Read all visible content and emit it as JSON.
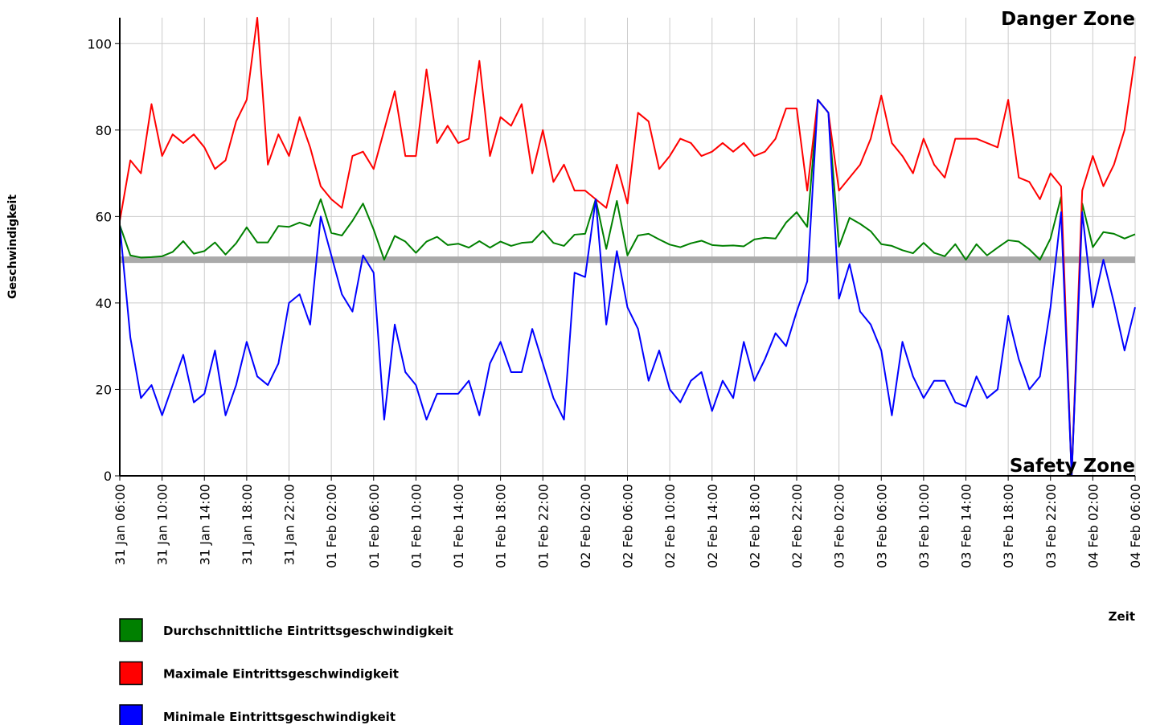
{
  "chart_data": {
    "type": "line",
    "y_label": "Geschwindigkeit",
    "x_label": "Zeit",
    "annotations": [
      {
        "text": "Danger Zone",
        "color": "#8b0000"
      },
      {
        "text": "Safety Zone",
        "color": "#006400"
      }
    ],
    "reference_line": {
      "value": 50,
      "color": "#aaaaaa"
    },
    "categories": [
      "31 Jan 06:00",
      null,
      null,
      null,
      "31 Jan 10:00",
      null,
      null,
      null,
      "31 Jan 14:00",
      null,
      null,
      null,
      "31 Jan 18:00",
      null,
      null,
      null,
      "31 Jan 22:00",
      null,
      null,
      null,
      "01 Feb 02:00",
      null,
      null,
      null,
      "01 Feb 06:00",
      null,
      null,
      null,
      "01 Feb 10:00",
      null,
      null,
      null,
      "01 Feb 14:00",
      null,
      null,
      null,
      "01 Feb 18:00",
      null,
      null,
      null,
      "01 Feb 22:00",
      null,
      null,
      null,
      "02 Feb 02:00",
      null,
      null,
      null,
      "02 Feb 06:00",
      null,
      null,
      null,
      "02 Feb 10:00",
      null,
      null,
      null,
      "02 Feb 14:00",
      null,
      null,
      null,
      "02 Feb 18:00",
      null,
      null,
      null,
      "02 Feb 22:00",
      null,
      null,
      null,
      "03 Feb 02:00",
      null,
      null,
      null,
      "03 Feb 06:00",
      null,
      null,
      null,
      "03 Feb 10:00",
      null,
      null,
      null,
      "03 Feb 14:00",
      null,
      null,
      null,
      "03 Feb 18:00",
      null,
      null,
      null,
      "03 Feb 22:00",
      null,
      null,
      null,
      "04 Feb 02:00",
      null,
      null,
      null,
      "04 Feb 06:00"
    ],
    "series": [
      {
        "name": "Durchschnittliche Eintrittsgeschwindigkeit",
        "color": "#008000",
        "values": [
          58,
          51,
          50.5,
          50.6,
          50.8,
          51.8,
          54.3,
          51.4,
          52,
          54,
          51.2,
          53.8,
          57.5,
          54,
          54,
          57.8,
          57.6,
          58.6,
          57.8,
          64,
          56.2,
          55.6,
          59,
          63,
          57,
          50,
          55.5,
          54.2,
          51.6,
          54.2,
          55.3,
          53.4,
          53.7,
          52.8,
          54.3,
          52.8,
          54.2,
          53.2,
          53.9,
          54.1,
          56.7,
          53.9,
          53.2,
          55.8,
          56,
          64,
          52.5,
          63.6,
          51,
          55.6,
          56,
          54.7,
          53.5,
          52.9,
          53.8,
          54.4,
          53.4,
          53.2,
          53.3,
          53.1,
          54.7,
          55.1,
          54.9,
          58.6,
          61,
          57.6,
          87,
          84,
          53,
          59.7,
          58.3,
          56.6,
          53.6,
          53.2,
          52.2,
          51.5,
          53.9,
          51.6,
          50.8,
          53.6,
          50,
          53.6,
          51,
          52.8,
          54.5,
          54.2,
          52.4,
          50,
          54.9,
          64.5,
          0,
          63,
          52.9,
          56.4,
          56,
          54.9,
          55.9
        ]
      },
      {
        "name": "Maximale Eintrittsgeschwindigkeit",
        "color": "#ff0000",
        "values": [
          59,
          73,
          70,
          86,
          74,
          79,
          77,
          79,
          76,
          71,
          73,
          82,
          87,
          106,
          72,
          79,
          74,
          83,
          76,
          67,
          64,
          62,
          74,
          75,
          71,
          80,
          89,
          74,
          74,
          94,
          77,
          81,
          77,
          78,
          96,
          74,
          83,
          81,
          86,
          70,
          80,
          68,
          72,
          66,
          66,
          64,
          62,
          72,
          63,
          84,
          82,
          71,
          74,
          78,
          77,
          74,
          75,
          77,
          75,
          77,
          74,
          75,
          78,
          85,
          85,
          66,
          87,
          84,
          66,
          69,
          72,
          78,
          88,
          77,
          74,
          70,
          78,
          72,
          69,
          78,
          78,
          78,
          77,
          76,
          87,
          69,
          68,
          64,
          70,
          67,
          0,
          66,
          74,
          67,
          72,
          80,
          97
        ]
      },
      {
        "name": "Minimale Eintrittsgeschwindigkeit",
        "color": "#0000ff",
        "values": [
          58,
          32,
          18,
          21,
          14,
          21,
          28,
          17,
          19,
          29,
          14,
          21,
          31,
          23,
          21,
          26,
          40,
          42,
          35,
          60,
          51,
          42,
          38,
          51,
          47,
          13,
          35,
          24,
          21,
          13,
          19,
          19,
          19,
          22,
          14,
          26,
          31,
          24,
          24,
          34,
          26,
          18,
          13,
          47,
          46,
          64,
          35,
          52,
          39,
          34,
          22,
          29,
          20,
          17,
          22,
          24,
          15,
          22,
          18,
          31,
          22,
          27,
          33,
          30,
          38,
          45,
          87,
          84,
          41,
          49,
          38,
          35,
          29,
          14,
          31,
          23,
          18,
          22,
          22,
          17,
          16,
          23,
          18,
          20,
          37,
          27,
          20,
          23,
          39,
          61,
          0,
          61,
          39,
          50,
          40,
          29,
          39
        ]
      }
    ],
    "ylim": [
      0,
      106
    ],
    "yticks": [
      0,
      20,
      40,
      60,
      80,
      100
    ],
    "grid": true
  }
}
